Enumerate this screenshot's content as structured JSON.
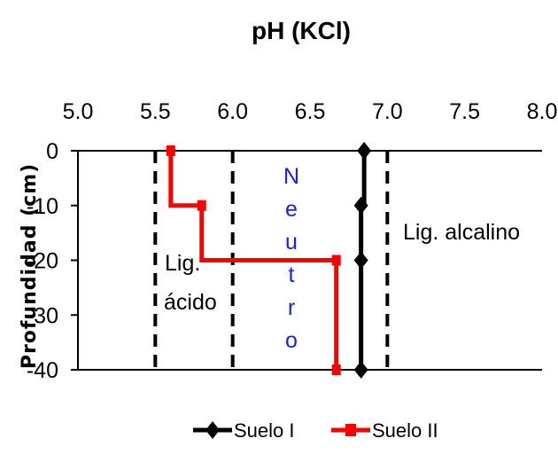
{
  "chart_data": {
    "type": "line",
    "title": "pH (KCl)",
    "xlabel": "pH (KCl)",
    "ylabel": "Profundidad (cm)",
    "xlim": [
      5.0,
      8.0
    ],
    "ylim": [
      -40,
      0
    ],
    "x_ticks": [
      "5.0",
      "5.5",
      "6.0",
      "6.5",
      "7.0",
      "7.5",
      "8.0"
    ],
    "y_ticks": [
      "0",
      "-10",
      "-20",
      "-30",
      "-40"
    ],
    "x_axis_position": "top",
    "grid": false,
    "legend_position": "bottom",
    "series": [
      {
        "name": "Suelo I",
        "color": "#000000",
        "marker": "diamond",
        "step": "vertical-first",
        "points": [
          [
            6.85,
            0
          ],
          [
            6.83,
            -10
          ],
          [
            6.83,
            -20
          ],
          [
            6.83,
            -40
          ]
        ]
      },
      {
        "name": "Suelo II",
        "color": "#ff0000",
        "marker": "square",
        "step": "vertical-first",
        "points": [
          [
            5.6,
            0
          ],
          [
            5.8,
            -10
          ],
          [
            6.67,
            -20
          ],
          [
            6.67,
            -40
          ]
        ]
      }
    ],
    "reference_lines": [
      {
        "x": 5.5,
        "style": "dashed",
        "color": "#000000"
      },
      {
        "x": 6.0,
        "style": "dashed",
        "color": "#000000"
      },
      {
        "x": 7.0,
        "style": "dashed",
        "color": "#000000"
      }
    ],
    "annotations": {
      "lig_acido_1": "Lig.",
      "lig_acido_2": "ácido",
      "neutro": "Neutro",
      "lig_alcalino": "Lig. alcalino"
    },
    "colors": {
      "annotation_blue": "#1a1aff"
    }
  }
}
